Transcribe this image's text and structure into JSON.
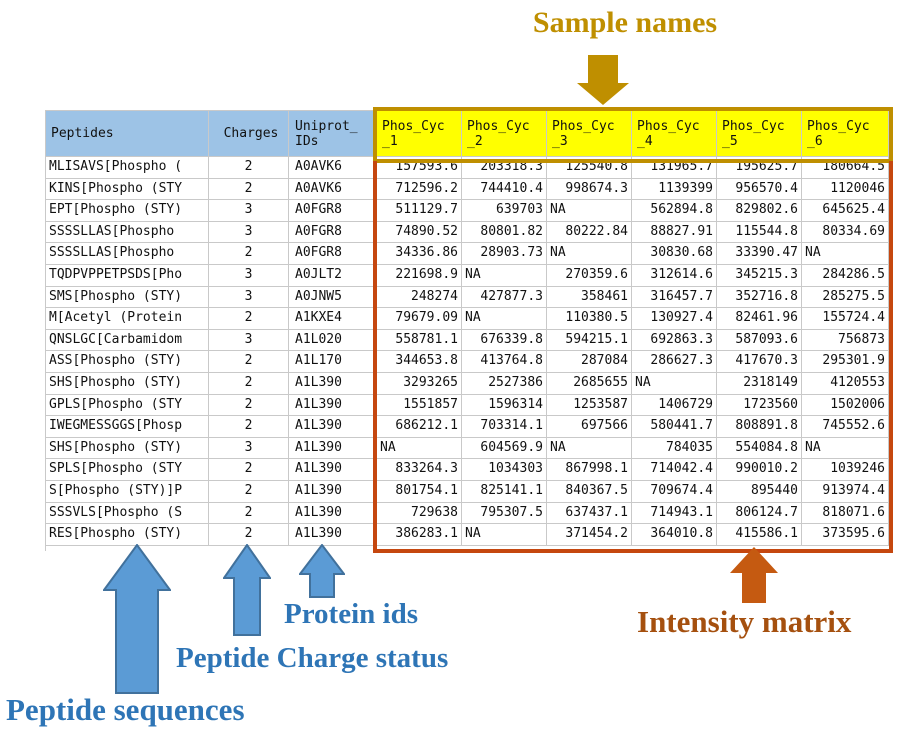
{
  "annotations": {
    "sample_names": {
      "label": "Sample names"
    },
    "protein_ids": {
      "label": "Protein ids"
    },
    "peptide_charge": {
      "label": "Peptide Charge status"
    },
    "peptide_sequences": {
      "label": "Peptide sequences"
    },
    "intensity_matrix": {
      "label": "Intensity matrix"
    }
  },
  "colors": {
    "header_fill_blue": "#9DC3E6",
    "sample_header_fill": "#FFFF00",
    "sample_border_gold": "#BF8F00",
    "matrix_border_orange": "#C5470F",
    "orange_arrow": "#C55A11",
    "blue_label": "#2E75B6",
    "blue_arrow_fill": "#5B9BD5",
    "blue_arrow_stroke": "#41719C"
  },
  "table": {
    "columns": [
      {
        "l1": "Peptides",
        "l2": ""
      },
      {
        "l1": "Charges",
        "l2": ""
      },
      {
        "l1": "Uniprot_",
        "l2": "IDs"
      },
      {
        "l1": "Phos_Cyc",
        "l2": "_1"
      },
      {
        "l1": "Phos_Cyc",
        "l2": "_2"
      },
      {
        "l1": "Phos_Cyc",
        "l2": "_3"
      },
      {
        "l1": "Phos_Cyc",
        "l2": "_4"
      },
      {
        "l1": "Phos_Cyc",
        "l2": "_5"
      },
      {
        "l1": "Phos_Cyc",
        "l2": "_6"
      }
    ],
    "rows": [
      [
        "MLISAVS[Phospho (",
        "2",
        "A0AVK6",
        "157593.6",
        "203318.3",
        "125540.8",
        "131965.7",
        "195625.7",
        "180664.5"
      ],
      [
        "KINS[Phospho (STY",
        "2",
        "A0AVK6",
        "712596.2",
        "744410.4",
        "998674.3",
        "1139399",
        "956570.4",
        "1120046"
      ],
      [
        "EPT[Phospho (STY)",
        "3",
        "A0FGR8",
        "511129.7",
        "639703",
        "NA",
        "562894.8",
        "829802.6",
        "645625.4"
      ],
      [
        "SSSSLLAS[Phospho",
        "3",
        "A0FGR8",
        "74890.52",
        "80801.82",
        "80222.84",
        "88827.91",
        "115544.8",
        "80334.69"
      ],
      [
        "SSSSLLAS[Phospho",
        "2",
        "A0FGR8",
        "34336.86",
        "28903.73",
        "NA",
        "30830.68",
        "33390.47",
        "NA"
      ],
      [
        "TQDPVPPETPSDS[Pho",
        "3",
        "A0JLT2",
        "221698.9",
        "NA",
        "270359.6",
        "312614.6",
        "345215.3",
        "284286.5"
      ],
      [
        "SMS[Phospho (STY)",
        "3",
        "A0JNW5",
        "248274",
        "427877.3",
        "358461",
        "316457.7",
        "352716.8",
        "285275.5"
      ],
      [
        "M[Acetyl (Protein",
        "2",
        "A1KXE4",
        "79679.09",
        "NA",
        "110380.5",
        "130927.4",
        "82461.96",
        "155724.4"
      ],
      [
        "QNSLGC[Carbamidom",
        "3",
        "A1L020",
        "558781.1",
        "676339.8",
        "594215.1",
        "692863.3",
        "587093.6",
        "756873"
      ],
      [
        "ASS[Phospho (STY)",
        "2",
        "A1L170",
        "344653.8",
        "413764.8",
        "287084",
        "286627.3",
        "417670.3",
        "295301.9"
      ],
      [
        "SHS[Phospho (STY)",
        "2",
        "A1L390",
        "3293265",
        "2527386",
        "2685655",
        "NA",
        "2318149",
        "4120553"
      ],
      [
        "GPLS[Phospho (STY",
        "2",
        "A1L390",
        "1551857",
        "1596314",
        "1253587",
        "1406729",
        "1723560",
        "1502006"
      ],
      [
        "IWEGMESSGGS[Phosp",
        "2",
        "A1L390",
        "686212.1",
        "703314.1",
        "697566",
        "580441.7",
        "808891.8",
        "745552.6"
      ],
      [
        "SHS[Phospho (STY)",
        "3",
        "A1L390",
        "NA",
        "604569.9",
        "NA",
        "784035",
        "554084.8",
        "NA"
      ],
      [
        "SPLS[Phospho (STY",
        "2",
        "A1L390",
        "833264.3",
        "1034303",
        "867998.1",
        "714042.4",
        "990010.2",
        "1039246"
      ],
      [
        "S[Phospho (STY)]P",
        "2",
        "A1L390",
        "801754.1",
        "825141.1",
        "840367.5",
        "709674.4",
        "895440",
        "913974.4"
      ],
      [
        "SSSVLS[Phospho (S",
        "2",
        "A1L390",
        "729638",
        "795307.5",
        "637437.1",
        "714943.1",
        "806124.7",
        "818071.6"
      ],
      [
        "RES[Phospho (STY)",
        "2",
        "A1L390",
        "386283.1",
        "NA",
        "371454.2",
        "364010.8",
        "415586.1",
        "373595.6"
      ]
    ]
  }
}
